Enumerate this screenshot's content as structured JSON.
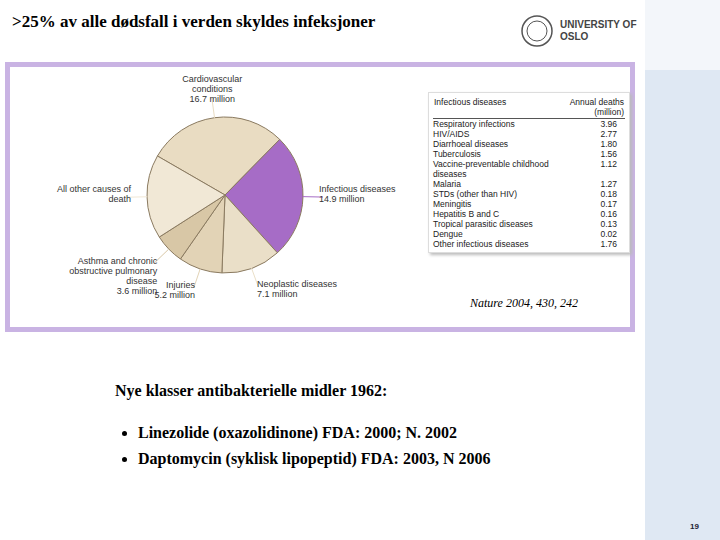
{
  "chart_data": {
    "type": "pie",
    "categories": [
      "Cardiovascular conditions",
      "Infectious diseases",
      "Neoplastic diseases",
      "Injuries",
      "Asthma and chronic obstructive pulmonary disease",
      "All other causes of death"
    ],
    "values": [
      16.7,
      14.9,
      7.1,
      5.2,
      3.6,
      10.0
    ],
    "value_labels": [
      "16.7 million",
      "14.9 million",
      "7.1 million",
      "5.2 million",
      "3.6 million",
      null
    ],
    "colors": [
      "#e9dcc2",
      "#a66cc6",
      "#eadfc8",
      "#e2d3b6",
      "#d8c7a6",
      "#f1e8d6"
    ],
    "data_labels": true
  },
  "slide": {
    "title": ">25% av alle dødsfall i verden skyldes infeksjoner",
    "logo": "UNIVERSITY OF OSLO",
    "source": "Nature 2004, 430, 242",
    "table": {
      "header": [
        "Infectious diseases",
        "Annual deaths (million)"
      ],
      "rows": [
        [
          "Respiratory infections",
          "3.96"
        ],
        [
          "HIV/AIDS",
          "2.77"
        ],
        [
          "Diarrhoeal diseases",
          "1.80"
        ],
        [
          "Tuberculosis",
          "1.56"
        ],
        [
          "Vaccine-preventable childhood diseases",
          "1.12"
        ],
        [
          "Malaria",
          "1.27"
        ],
        [
          "STDs (other than HIV)",
          "0.18"
        ],
        [
          "Meningitis",
          "0.17"
        ],
        [
          "Hepatitis B and C",
          "0.16"
        ],
        [
          "Tropical parasitic diseases",
          "0.13"
        ],
        [
          "Dengue",
          "0.02"
        ],
        [
          "Other infectious diseases",
          "1.76"
        ]
      ]
    },
    "heading": "Nye klasser antibakterielle midler 1962:",
    "bullets": [
      "Linezolide (oxazolidinone) FDA: 2000; N. 2002",
      "Daptomycin (syklisk lipopeptid) FDA: 2003, N 2006"
    ],
    "page": "19"
  }
}
